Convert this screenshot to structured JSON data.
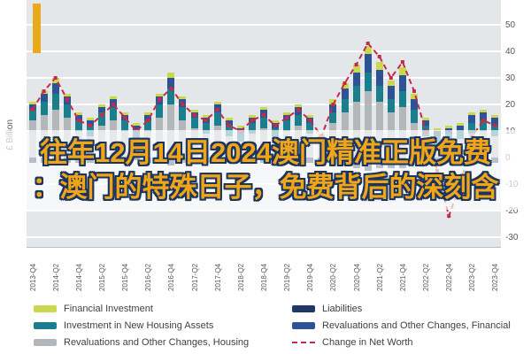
{
  "page": {
    "overlay_title_line1": "往年12月14日2024澳门精准正版免费",
    "overlay_title_line2": "：澳门的特殊日子，免费背后的深刻含",
    "title_color": "#F0A518",
    "title_outline_color": "#1A3560",
    "accent_color": "#E8AA1C"
  },
  "chart_data": {
    "type": "bar",
    "subtype": "stacked-bars-with-dashed-line",
    "title": "",
    "xlabel": "",
    "ylabel": "£ Billion",
    "ylim": [
      -30,
      50
    ],
    "y_ticks": [
      50,
      40,
      30,
      20,
      10,
      0,
      -10,
      -20,
      -30
    ],
    "grid": true,
    "legend_position": "bottom",
    "x_label_every": 2,
    "categories": [
      "2013-Q4",
      "2014-Q1",
      "2014-Q2",
      "2014-Q3",
      "2014-Q4",
      "2015-Q1",
      "2015-Q2",
      "2015-Q3",
      "2015-Q4",
      "2016-Q1",
      "2016-Q2",
      "2016-Q3",
      "2016-Q4",
      "2017-Q1",
      "2017-Q2",
      "2017-Q3",
      "2017-Q4",
      "2018-Q1",
      "2018-Q2",
      "2018-Q3",
      "2018-Q4",
      "2019-Q1",
      "2019-Q2",
      "2019-Q3",
      "2019-Q4",
      "2020-Q1",
      "2020-Q2",
      "2020-Q3",
      "2020-Q4",
      "2021-Q1",
      "2021-Q2",
      "2021-Q3",
      "2021-Q4",
      "2022-Q1",
      "2022-Q2",
      "2022-Q3",
      "2022-Q4",
      "2023-Q1",
      "2023-Q2",
      "2023-Q3",
      "2023-Q4"
    ],
    "stack_order": [
      "Revaluations and Other Changes, Housing",
      "Investment in New Housing Assets",
      "Revaluations and Other Changes, Financial",
      "Financial Investment",
      "Liabilities"
    ],
    "series": [
      {
        "name": "Financial Investment",
        "kind": "bar",
        "color": "#CBD84E",
        "values": [
          1,
          1,
          2,
          1,
          1,
          1,
          1,
          1,
          1,
          1,
          1,
          1,
          2,
          1,
          1,
          1,
          1,
          1,
          1,
          1,
          1,
          1,
          1,
          1,
          1,
          1,
          2,
          2,
          3,
          3,
          3,
          2,
          3,
          2,
          1,
          1,
          1,
          1,
          1,
          1,
          1
        ]
      },
      {
        "name": "Investment in New Housing Assets",
        "kind": "bar",
        "color": "#1A7E8C",
        "values": [
          4,
          5,
          6,
          5,
          4,
          4,
          5,
          5,
          4,
          3,
          4,
          5,
          6,
          5,
          4,
          4,
          5,
          4,
          3,
          4,
          4,
          3,
          4,
          4,
          4,
          2,
          4,
          5,
          6,
          7,
          6,
          5,
          6,
          5,
          4,
          3,
          3,
          3,
          4,
          4,
          4
        ]
      },
      {
        "name": "Revaluations and Other Changes, Housing",
        "kind": "bar",
        "color": "#B3B7BA",
        "values": [
          14,
          16,
          18,
          15,
          10,
          8,
          12,
          14,
          10,
          7,
          10,
          15,
          20,
          14,
          11,
          9,
          12,
          8,
          6,
          9,
          11,
          8,
          10,
          12,
          9,
          5,
          13,
          17,
          21,
          25,
          21,
          17,
          19,
          13,
          8,
          5,
          6,
          7,
          9,
          10,
          8
        ]
      },
      {
        "name": "Liabilities",
        "kind": "bar",
        "color": "#1F3864",
        "values": [
          -2,
          -2,
          -3,
          -2,
          -2,
          -2,
          -2,
          -2,
          -2,
          -1,
          -2,
          -2,
          -3,
          -2,
          -2,
          -2,
          -2,
          -2,
          -1,
          -2,
          -2,
          -2,
          -2,
          -2,
          -2,
          -1,
          -3,
          -3,
          -4,
          -5,
          -4,
          -4,
          -4,
          -3,
          -2,
          -2,
          -2,
          -2,
          -2,
          -2,
          -2
        ]
      },
      {
        "name": "Revaluations and Other Changes, Financial",
        "kind": "bar",
        "color": "#2E5395",
        "values": [
          2,
          3,
          4,
          3,
          2,
          2,
          2,
          3,
          2,
          2,
          2,
          3,
          4,
          3,
          2,
          2,
          3,
          2,
          2,
          2,
          3,
          2,
          2,
          3,
          2,
          1,
          3,
          4,
          5,
          7,
          6,
          5,
          6,
          4,
          2,
          2,
          2,
          2,
          3,
          3,
          3
        ]
      },
      {
        "name": "Change in Net Worth",
        "kind": "line",
        "dashed": true,
        "color": "#C22B4A",
        "values": [
          18,
          25,
          30,
          22,
          14,
          12,
          16,
          20,
          15,
          10,
          14,
          22,
          26,
          20,
          16,
          14,
          18,
          12,
          10,
          14,
          16,
          12,
          15,
          18,
          14,
          8,
          20,
          28,
          35,
          43,
          38,
          30,
          36,
          25,
          10,
          -5,
          -22,
          -10,
          8,
          14,
          12
        ]
      }
    ]
  },
  "legend": {
    "columns": [
      [
        "Financial Investment",
        "Investment in New Housing Assets",
        "Revaluations and Other Changes, Housing"
      ],
      [
        "Liabilities",
        "Revaluations and Other Changes, Financial",
        "Change in Net Worth"
      ]
    ]
  }
}
